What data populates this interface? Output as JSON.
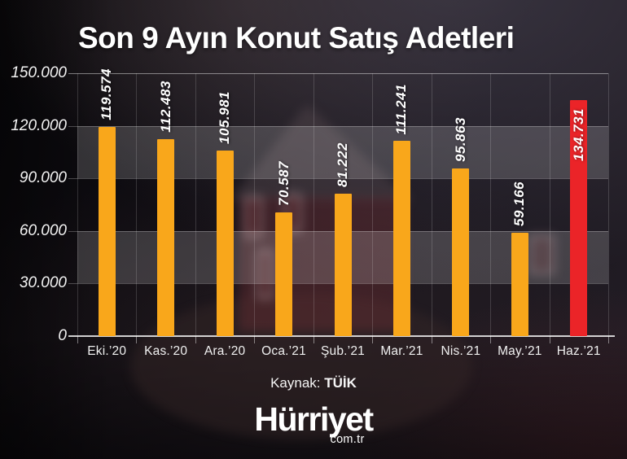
{
  "header": {
    "title": "Son 9 Ayın Konut Satış Adetleri"
  },
  "chart_data": {
    "type": "bar",
    "title": "Son 9 Ayın Konut Satış Adetleri",
    "categories": [
      "Eki.’20",
      "Kas.’20",
      "Ara.’20",
      "Oca.’21",
      "Şub.’21",
      "Mar.’21",
      "Nis.’21",
      "May.’21",
      "Haz.’21"
    ],
    "values": [
      119574,
      112483,
      105981,
      70587,
      81222,
      111241,
      95863,
      59166,
      134731
    ],
    "value_labels": [
      "119.574",
      "112.483",
      "105.981",
      "70.587",
      "81.222",
      "111.241",
      "95.863",
      "59.166",
      "134.731"
    ],
    "bar_colors": [
      "#F9A71B",
      "#F9A71B",
      "#F9A71B",
      "#F9A71B",
      "#F9A71B",
      "#F9A71B",
      "#F9A71B",
      "#F9A71B",
      "#EB2428"
    ],
    "highlight_index": 8,
    "y_tick_labels": [
      "150.000",
      "120.000",
      "90.000",
      "60.000",
      "30.000",
      "0"
    ],
    "y_tick_values": [
      150000,
      120000,
      90000,
      60000,
      30000,
      0
    ],
    "ylim": [
      0,
      150000
    ],
    "xlabel": "",
    "ylabel": "",
    "legend": "none",
    "grid": {
      "horizontal": true,
      "vertical": true,
      "alternating_bands": true
    },
    "colors": {
      "bar": "#F9A71B",
      "highlight": "#EB2428",
      "band": "rgba(255,255,255,0.17)",
      "background": "#131017",
      "text": "#FFFFFF"
    }
  },
  "footer": {
    "source_label": "Kaynak:",
    "source_value": "TÜİK",
    "brand": "Hürriyet",
    "brand_domain": "com.tr"
  }
}
